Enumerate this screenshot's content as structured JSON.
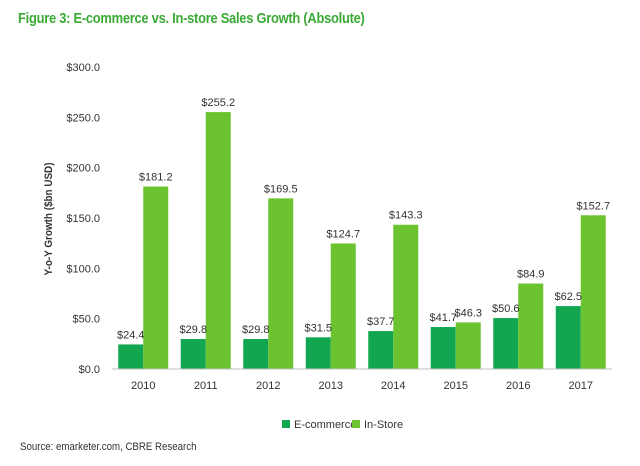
{
  "title": "Figure 3: E-commerce vs. In-store Sales Growth (Absolute)",
  "source": "Source:   emarketer.com, CBRE Research",
  "colors": {
    "title": "#3aaa35",
    "ecommerce": "#13a651",
    "instore": "#6cc330",
    "axis": "#bfbfbf"
  },
  "chart_data": {
    "type": "bar",
    "ylabel": "Y-o-Y Growth ($bn USD)",
    "ylim": [
      0,
      300
    ],
    "yticks": [
      0,
      50,
      100,
      150,
      200,
      250,
      300
    ],
    "ytick_labels": [
      "$0.0",
      "$50.0",
      "$100.0",
      "$150.0",
      "$200.0",
      "$250.0",
      "$300.0"
    ],
    "categories": [
      "2010",
      "2011",
      "2012",
      "2013",
      "2014",
      "2015",
      "2016",
      "2017"
    ],
    "series": [
      {
        "name": "E-commerce",
        "values": [
          24.4,
          29.8,
          29.8,
          31.5,
          37.7,
          41.7,
          50.6,
          62.5
        ],
        "labels": [
          "$24.4",
          "$29.8",
          "$29.8",
          "$31.5",
          "$37.7",
          "$41.7",
          "$50.6",
          "$62.5"
        ]
      },
      {
        "name": "In-Store",
        "values": [
          181.2,
          255.2,
          169.5,
          124.7,
          143.3,
          46.3,
          84.9,
          152.7
        ],
        "labels": [
          "$181.2",
          "$255.2",
          "$169.5",
          "$124.7",
          "$143.3",
          "$46.3",
          "$84.9",
          "$152.7"
        ]
      }
    ],
    "grid": false,
    "legend": "bottom-center"
  }
}
